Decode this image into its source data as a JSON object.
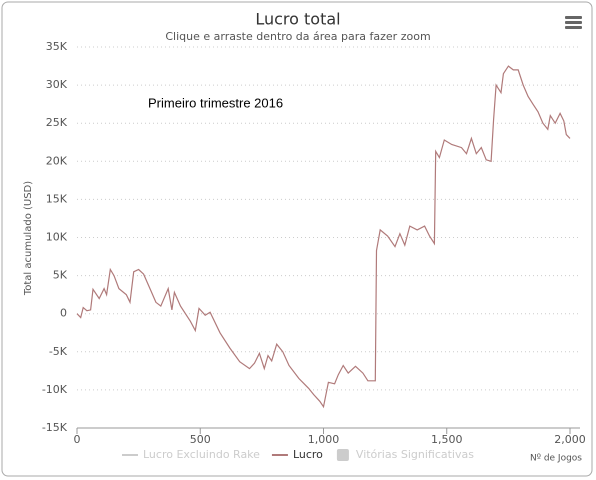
{
  "chart_data": {
    "type": "line",
    "title": "Lucro total",
    "subtitle": "Clique e arraste dentro da área para fazer zoom",
    "annotation": "Primeiro trimestre 2016",
    "x_label": "Nº de Jogos",
    "y_label": "Total acumulado (USD)",
    "xlim": [
      0,
      2000
    ],
    "xticks": [
      0,
      500,
      {
        "value": 1000,
        "label": "1,000"
      },
      {
        "value": 1500,
        "label": "1,500"
      },
      {
        "value": 2000,
        "label": "2,000"
      }
    ],
    "ylim": [
      -15000,
      35000
    ],
    "yticks": [
      {
        "value": 35000,
        "label": "35K"
      },
      {
        "value": 30000,
        "label": "30K"
      },
      {
        "value": 25000,
        "label": "25K"
      },
      {
        "value": 20000,
        "label": "20K"
      },
      {
        "value": 15000,
        "label": "15K"
      },
      {
        "value": 10000,
        "label": "10K"
      },
      {
        "value": 5000,
        "label": "5K"
      },
      0,
      {
        "value": -5000,
        "label": "-5K"
      },
      {
        "value": -10000,
        "label": "-10K"
      },
      {
        "value": -15000,
        "label": "-15K"
      }
    ],
    "grid": true,
    "legend_items": [
      {
        "name": "Lucro Excluindo Rake",
        "symbol": "line",
        "color": "#cccccc"
      },
      {
        "name": "Lucro",
        "symbol": "line",
        "color": "#b07a7a"
      },
      {
        "name": "Vitórias Significativas",
        "symbol": "box",
        "color": "#cccccc"
      }
    ],
    "x": [
      0,
      15,
      25,
      40,
      55,
      65,
      90,
      110,
      120,
      135,
      150,
      170,
      200,
      215,
      230,
      250,
      270,
      300,
      320,
      340,
      370,
      385,
      395,
      420,
      460,
      480,
      495,
      520,
      540,
      580,
      620,
      660,
      700,
      720,
      740,
      760,
      775,
      790,
      810,
      835,
      860,
      900,
      940,
      960,
      985,
      1000,
      1020,
      1045,
      1060,
      1080,
      1100,
      1130,
      1160,
      1180,
      1210,
      1215,
      1230,
      1260,
      1290,
      1310,
      1330,
      1350,
      1380,
      1410,
      1430,
      1450,
      1455,
      1470,
      1490,
      1520,
      1560,
      1580,
      1600,
      1620,
      1640,
      1660,
      1680,
      1690,
      1700,
      1720,
      1730,
      1750,
      1770,
      1790,
      1810,
      1830,
      1850,
      1870,
      1890,
      1910,
      1920,
      1940,
      1960,
      1975,
      1985,
      2000
    ],
    "series": [
      {
        "name": "Lucro",
        "color": "#b07a7a",
        "values": [
          0,
          -500,
          800,
          400,
          500,
          3200,
          2000,
          3300,
          2500,
          5800,
          5000,
          3300,
          2500,
          1500,
          5500,
          5800,
          5200,
          3000,
          1500,
          1000,
          3300,
          500,
          2800,
          1000,
          -1000,
          -2200,
          700,
          -200,
          200,
          -2500,
          -4500,
          -6300,
          -7200,
          -6500,
          -5200,
          -7200,
          -5500,
          -6200,
          -4000,
          -5000,
          -6800,
          -8500,
          -9800,
          -10600,
          -11500,
          -12200,
          -9000,
          -9200,
          -8000,
          -6800,
          -7800,
          -6900,
          -7800,
          -8800,
          -8800,
          8300,
          11000,
          10200,
          8800,
          10500,
          9000,
          11500,
          11000,
          11500,
          10200,
          9200,
          21300,
          20500,
          22800,
          22200,
          21800,
          21000,
          23000,
          21000,
          21800,
          20200,
          20000,
          25500,
          30000,
          29000,
          31500,
          32500,
          32000,
          32000,
          30000,
          28500,
          27500,
          26500,
          25000,
          24200,
          26000,
          25000,
          26300,
          25300,
          23500,
          23000
        ]
      }
    ]
  }
}
